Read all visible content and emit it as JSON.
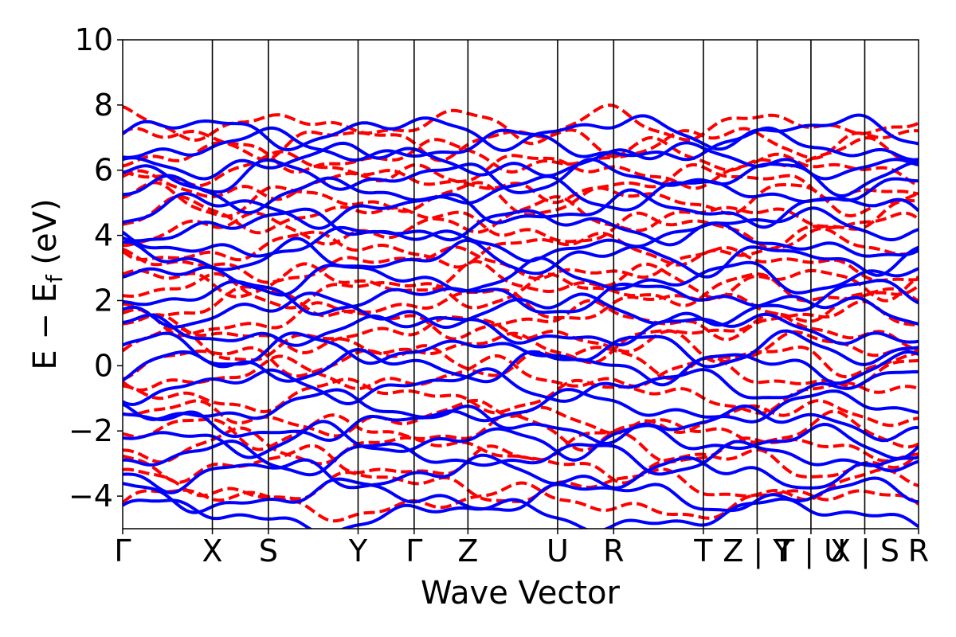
{
  "chart_data": {
    "type": "line",
    "xlabel": "Wave Vector",
    "ylabel": "E − E",
    "ylabel_subscript": "f",
    "ylabel_unit": " (eV)",
    "ylim": [
      -5,
      10
    ],
    "yticks": [
      -4,
      -2,
      0,
      2,
      4,
      6,
      8,
      10
    ],
    "xlim": [
      0,
      17.75
    ],
    "kpoint_positions": [
      0,
      2.0,
      3.25,
      5.25,
      6.5,
      7.7,
      9.7,
      10.95,
      12.95,
      14.15,
      15.35,
      16.55,
      17.75
    ],
    "kpoint_labels": [
      "Γ",
      "X",
      "S",
      "Y",
      "Γ",
      "Z",
      "U",
      "R",
      "T",
      "Z | Y",
      "T | U",
      "X | S",
      "R"
    ],
    "grid": false,
    "legend": "none",
    "series": [
      {
        "style": "dashed",
        "color": "#ff0000",
        "bands": [
          -4.2,
          -3.7,
          -3.0,
          -2.5,
          -2.0,
          -1.6,
          -0.9,
          -0.3,
          0.2,
          0.6,
          1.0,
          1.4,
          1.9,
          2.3,
          2.6,
          3.1,
          3.6,
          4.2,
          4.6,
          5.1,
          5.6,
          6.0,
          6.4,
          6.9,
          7.4
        ]
      },
      {
        "style": "solid",
        "color": "#0000ff",
        "bands": [
          -4.6,
          -4.0,
          -3.3,
          -2.8,
          -2.3,
          -1.8,
          -1.3,
          -0.6,
          0.0,
          0.5,
          1.1,
          1.7,
          2.1,
          2.7,
          3.3,
          3.8,
          4.3,
          4.8,
          5.3,
          5.8,
          6.3,
          6.7,
          7.2
        ]
      }
    ]
  }
}
